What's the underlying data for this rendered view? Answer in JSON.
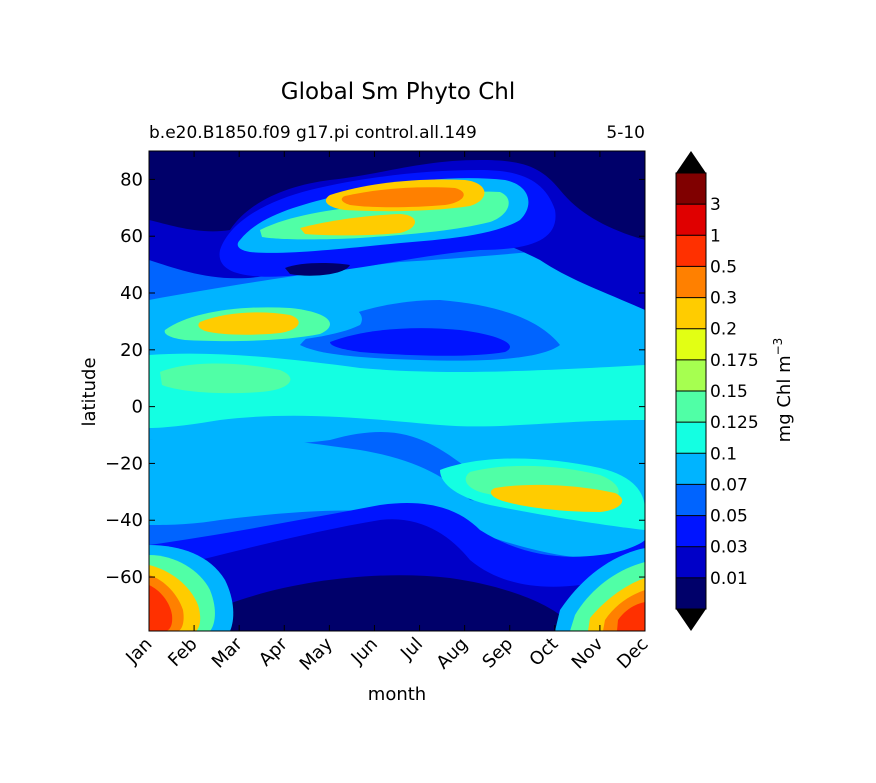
{
  "chart_data": {
    "type": "heatmap",
    "title": "Global Sm Phyto Chl",
    "subtitle_left": "b.e20.B1850.f09 g17.pi control.all.149",
    "subtitle_right": "5-10",
    "xlabel": "month",
    "ylabel": "latitude",
    "x_categories": [
      "Jan",
      "Feb",
      "Mar",
      "Apr",
      "May",
      "Jun",
      "Jul",
      "Aug",
      "Sep",
      "Oct",
      "Nov",
      "Dec"
    ],
    "ylim": [
      -79,
      90
    ],
    "y_ticks": [
      "-60",
      "-40",
      "-20",
      "0",
      "20",
      "40",
      "60",
      "80"
    ],
    "colorbar": {
      "label": "mg Chl m",
      "label_exponent": "−3",
      "levels": [
        "0.01",
        "0.03",
        "0.05",
        "0.07",
        "0.1",
        "0.125",
        "0.15",
        "0.175",
        "0.2",
        "0.3",
        "0.5",
        "1",
        "3"
      ],
      "colors": [
        "#00006a",
        "#0000c8",
        "#0014ff",
        "#0064ff",
        "#00b4ff",
        "#14ffe2",
        "#50ffa6",
        "#a6ff50",
        "#e2ff14",
        "#ffcc00",
        "#ff8000",
        "#ff3000",
        "#e00000",
        "#800000"
      ]
    }
  }
}
